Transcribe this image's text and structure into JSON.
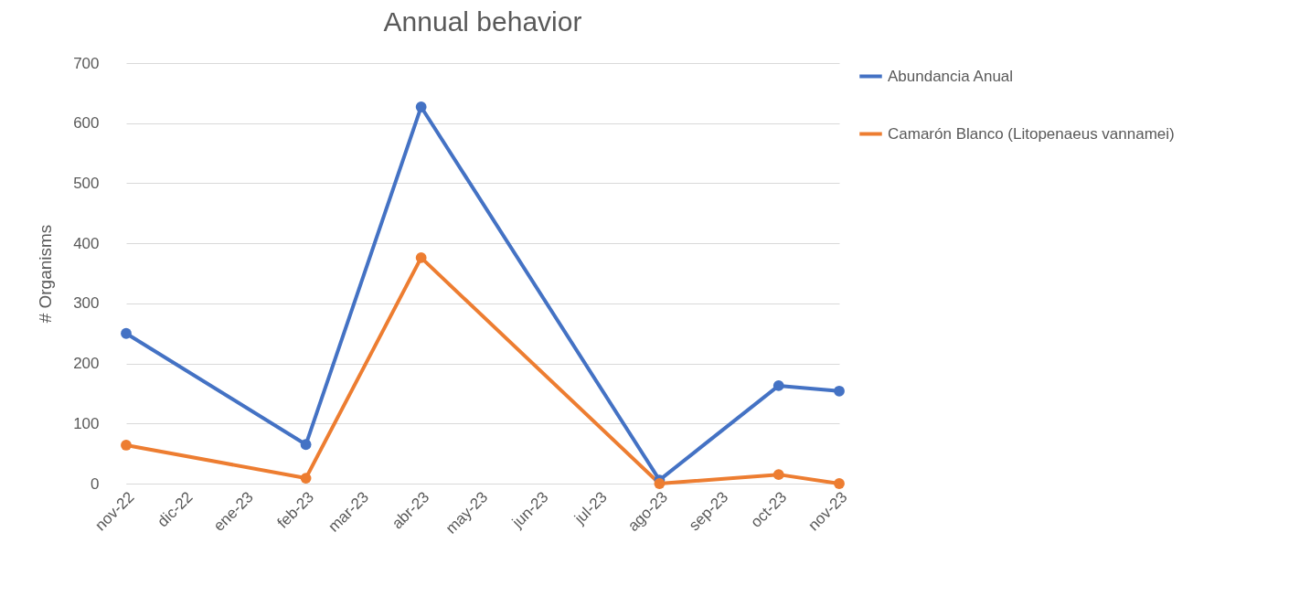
{
  "chart_data": {
    "type": "line",
    "title": "Annual behavior",
    "ylabel": "# Organisms",
    "x": [
      "2022-11",
      "2023-02",
      "2023-04",
      "2023-08",
      "2023-10",
      "2023-11"
    ],
    "series": [
      {
        "name": "Abundancia Anual",
        "color": "#4472c4",
        "values": [
          250,
          65,
          627,
          6,
          163,
          154
        ]
      },
      {
        "name": "Camarón Blanco (Litopenaeus vannamei)",
        "color": "#ed7d31",
        "values": [
          64,
          9,
          376,
          0,
          15,
          0
        ]
      }
    ],
    "xlim": [
      "2022-11",
      "2023-11"
    ],
    "xticks": [
      {
        "value": "2022-11",
        "label": "nov-22"
      },
      {
        "value": "2022-12",
        "label": "dic-22"
      },
      {
        "value": "2023-01",
        "label": "ene-23"
      },
      {
        "value": "2023-02",
        "label": "feb-23"
      },
      {
        "value": "2023-03",
        "label": "mar-23"
      },
      {
        "value": "2023-04",
        "label": "abr-23"
      },
      {
        "value": "2023-05",
        "label": "may-23"
      },
      {
        "value": "2023-06",
        "label": "jun-23"
      },
      {
        "value": "2023-07",
        "label": "jul-23"
      },
      {
        "value": "2023-08",
        "label": "ago-23"
      },
      {
        "value": "2023-09",
        "label": "sep-23"
      },
      {
        "value": "2023-10",
        "label": "oct-23"
      },
      {
        "value": "2023-11",
        "label": "nov-23"
      }
    ],
    "ylim": [
      0,
      700
    ],
    "yticks": [
      0,
      100,
      200,
      300,
      400,
      500,
      600,
      700
    ],
    "grid": "y",
    "legend": "right",
    "marker": "circle",
    "line_style": "solid"
  }
}
